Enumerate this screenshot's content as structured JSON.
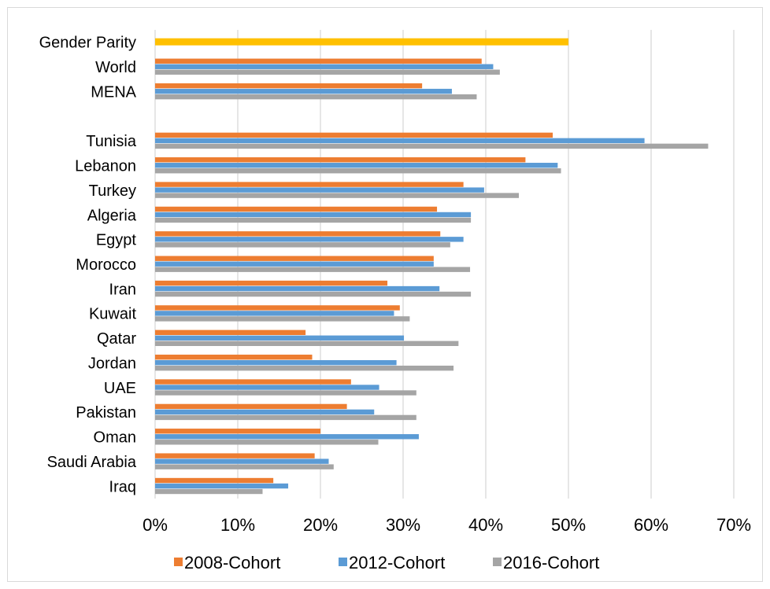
{
  "chart_data": {
    "type": "bar",
    "orientation": "horizontal",
    "title": "",
    "xlabel": "",
    "ylabel": "",
    "xlim": [
      0,
      0.7
    ],
    "xticks": [
      "0%",
      "10%",
      "20%",
      "30%",
      "40%",
      "50%",
      "60%",
      "70%"
    ],
    "grid": true,
    "legend_position": "bottom",
    "reference_bar": {
      "label": "Gender Parity",
      "value": 0.5,
      "color": "#FFC000"
    },
    "categories": [
      "World",
      "MENA",
      "",
      "Tunisia",
      "Lebanon",
      "Turkey",
      "Algeria",
      "Egypt",
      "Morocco",
      "Iran",
      "Kuwait",
      "Qatar",
      "Jordan",
      "UAE",
      "Pakistan",
      "Oman",
      "Saudi Arabia",
      "Iraq"
    ],
    "series": [
      {
        "name": "2008-Cohort",
        "color": "#ED7D31",
        "values": [
          0.395,
          0.323,
          null,
          0.481,
          0.448,
          0.373,
          0.341,
          0.345,
          0.337,
          0.281,
          0.296,
          0.182,
          0.19,
          0.237,
          0.232,
          0.2,
          0.193,
          0.143
        ]
      },
      {
        "name": "2012-Cohort",
        "color": "#5B9BD5",
        "values": [
          0.409,
          0.359,
          null,
          0.592,
          0.487,
          0.398,
          0.382,
          0.373,
          0.337,
          0.344,
          0.289,
          0.301,
          0.292,
          0.271,
          0.265,
          0.319,
          0.21,
          0.161
        ]
      },
      {
        "name": "2016-Cohort",
        "color": "#A5A5A5",
        "values": [
          0.417,
          0.389,
          null,
          0.669,
          0.491,
          0.44,
          0.382,
          0.357,
          0.381,
          0.382,
          0.308,
          0.367,
          0.361,
          0.316,
          0.316,
          0.27,
          0.216,
          0.13
        ]
      }
    ]
  }
}
